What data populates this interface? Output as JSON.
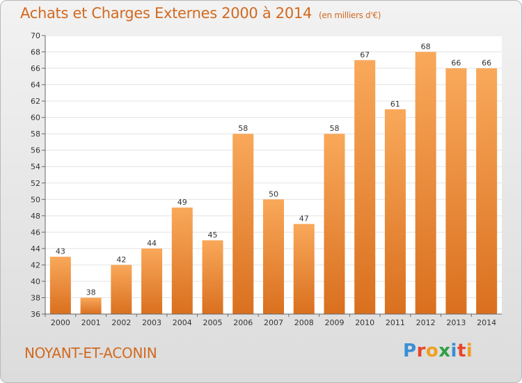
{
  "title": "Achats et Charges Externes 2000 à 2014",
  "subtitle": "(en milliers d'€)",
  "location": "NOYANT-ET-ACONIN",
  "logo": {
    "text": "Proxiti",
    "letters": [
      {
        "ch": "P",
        "color": "#3a8fd6"
      },
      {
        "ch": "r",
        "color": "#e8452c"
      },
      {
        "ch": "o",
        "color": "#f0a020"
      },
      {
        "ch": "x",
        "color": "#2f9e44"
      },
      {
        "ch": "i",
        "color": "#3a8fd6"
      },
      {
        "ch": "t",
        "color": "#e8452c"
      },
      {
        "ch": "i",
        "color": "#f0a020"
      }
    ]
  },
  "colors": {
    "accent": "#d2691e",
    "bar_light": "#f9a85a",
    "bar_dark": "#d9701f"
  },
  "chart_data": {
    "type": "bar",
    "categories": [
      "2000",
      "2001",
      "2002",
      "2003",
      "2004",
      "2005",
      "2006",
      "2007",
      "2008",
      "2009",
      "2010",
      "2011",
      "2012",
      "2013",
      "2014"
    ],
    "values": [
      43,
      38,
      42,
      44,
      49,
      45,
      58,
      50,
      47,
      58,
      67,
      61,
      68,
      66,
      66
    ],
    "ylim": [
      36,
      70
    ],
    "yticks": [
      36,
      38,
      40,
      42,
      44,
      46,
      48,
      50,
      52,
      54,
      56,
      58,
      60,
      62,
      64,
      66,
      68,
      70
    ],
    "grid": true,
    "title": "Achats et Charges Externes 2000 à 2014",
    "xlabel": "",
    "ylabel": ""
  }
}
